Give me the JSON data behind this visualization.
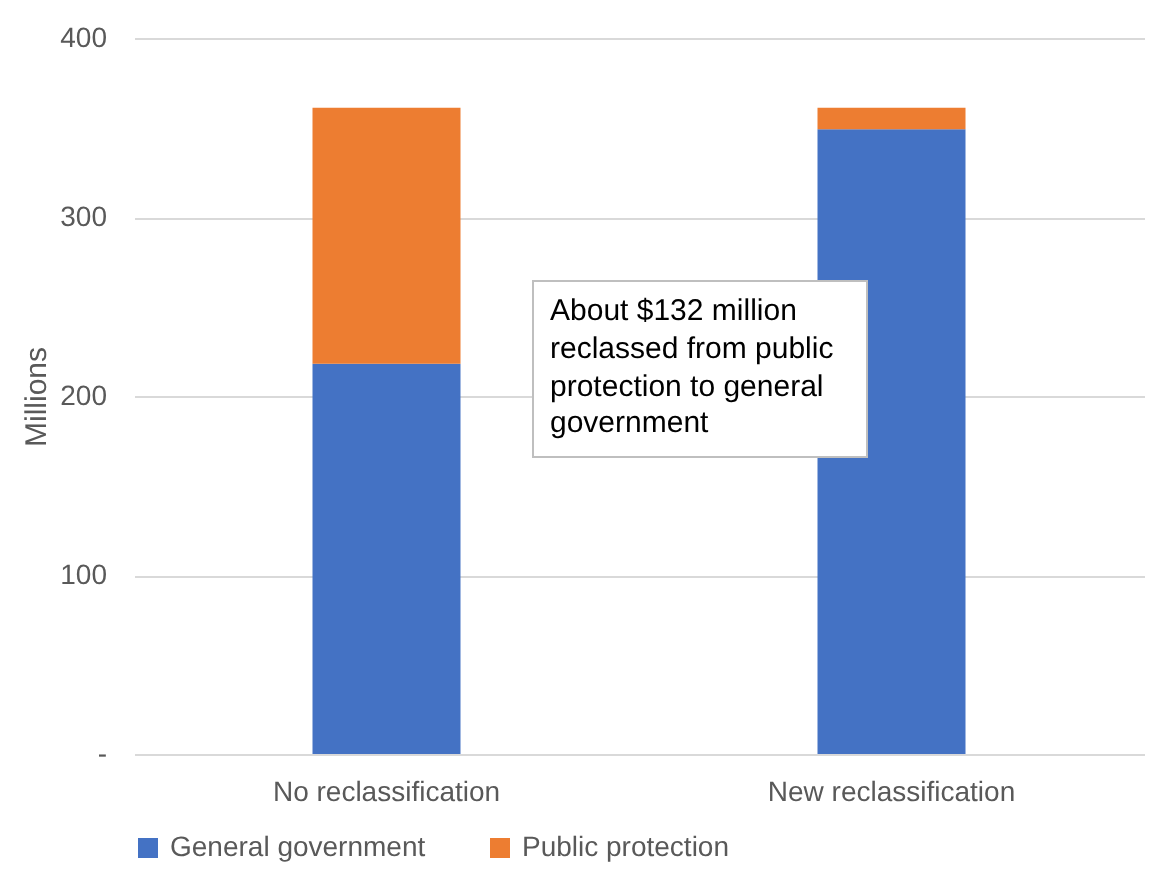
{
  "chart_data": {
    "type": "bar",
    "stacked": true,
    "ylabel": "Millions",
    "categories": [
      "No reclassification",
      "New reclassification"
    ],
    "series": [
      {
        "name": "General government",
        "color": "#4472c4",
        "values": [
          218,
          349
        ]
      },
      {
        "name": "Public protection",
        "color": "#ed7d31",
        "values": [
          143,
          12
        ]
      }
    ],
    "ylim": [
      0,
      400
    ],
    "yticks": [
      {
        "value": 0,
        "label": "-"
      },
      100,
      200,
      300,
      400
    ],
    "grid": "y",
    "legend": "bottom",
    "annotations": [
      "About $132 million reclassed from public protection to general government"
    ]
  }
}
